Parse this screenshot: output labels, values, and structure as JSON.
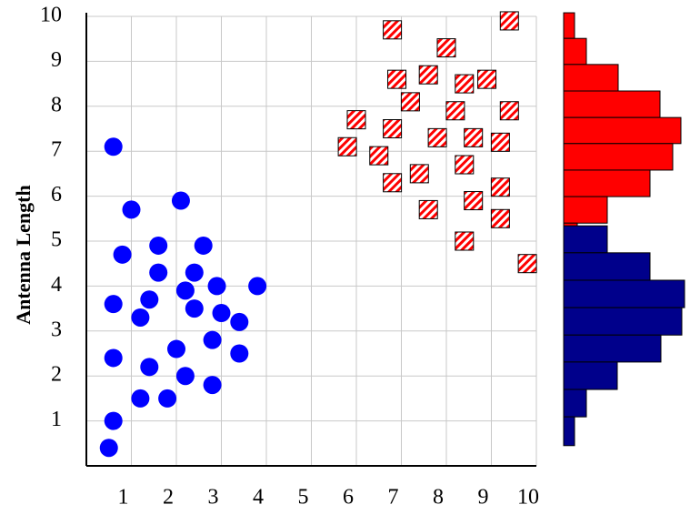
{
  "chart_data": [
    {
      "type": "scatter",
      "ylabel": "Antenna Length",
      "grid": true,
      "xlim": [
        0,
        10
      ],
      "ylim": [
        0,
        10
      ],
      "xticks": [
        1,
        2,
        3,
        4,
        5,
        6,
        7,
        8,
        9,
        10
      ],
      "yticks": [
        1,
        2,
        3,
        4,
        5,
        6,
        7,
        8,
        9,
        10
      ],
      "series": [
        {
          "color": "#0000ff",
          "marker": "circle",
          "x": [
            0.6,
            1.0,
            2.1,
            0.8,
            1.6,
            2.6,
            1.6,
            2.4,
            0.6,
            1.4,
            2.2,
            2.9,
            3.8,
            1.2,
            2.4,
            3.0,
            3.4,
            2.8,
            2.0,
            0.6,
            1.4,
            3.4,
            2.2,
            2.8,
            1.2,
            1.8,
            0.6,
            0.5
          ],
          "values": [
            7.1,
            5.7,
            5.9,
            4.7,
            4.9,
            4.9,
            4.3,
            4.3,
            3.6,
            3.7,
            3.9,
            4.0,
            4.0,
            3.3,
            3.5,
            3.4,
            3.2,
            2.8,
            2.6,
            2.4,
            2.2,
            2.5,
            2.0,
            1.8,
            1.5,
            1.5,
            1.0,
            0.4
          ]
        },
        {
          "color": "#ff0000",
          "marker": "hatched-square",
          "x": [
            6.8,
            9.4,
            8.0,
            7.6,
            6.9,
            8.4,
            8.9,
            7.2,
            8.2,
            9.4,
            6.0,
            6.8,
            7.8,
            8.6,
            9.2,
            5.8,
            6.5,
            8.4,
            7.4,
            6.8,
            9.2,
            8.6,
            7.6,
            9.2,
            8.4,
            9.8
          ],
          "values": [
            9.7,
            9.9,
            9.3,
            8.7,
            8.6,
            8.5,
            8.6,
            8.1,
            7.9,
            7.9,
            7.7,
            7.5,
            7.3,
            7.3,
            7.2,
            7.1,
            6.9,
            6.7,
            6.5,
            6.3,
            6.2,
            5.9,
            5.7,
            5.5,
            5.0,
            4.5
          ]
        }
      ]
    },
    {
      "type": "histogram",
      "orientation": "horizontal",
      "xlim": [
        0,
        135
      ],
      "ylim": [
        0,
        10
      ],
      "series": [
        {
          "color": "#ff0000",
          "bins": [
            10.08,
            9.51,
            8.93,
            8.34,
            7.75,
            7.17,
            6.58,
            5.99,
            5.4,
            4.8,
            4.23
          ],
          "counts": [
            12,
            25,
            60,
            106,
            129,
            120,
            95,
            48,
            15,
            4
          ]
        },
        {
          "color": "#00008b",
          "bins": [
            5.34,
            4.74,
            4.13,
            3.52,
            2.91,
            2.31,
            1.7,
            1.09,
            0.45
          ],
          "counts": [
            48,
            95,
            133,
            130,
            107,
            59,
            25,
            12
          ]
        }
      ]
    }
  ]
}
